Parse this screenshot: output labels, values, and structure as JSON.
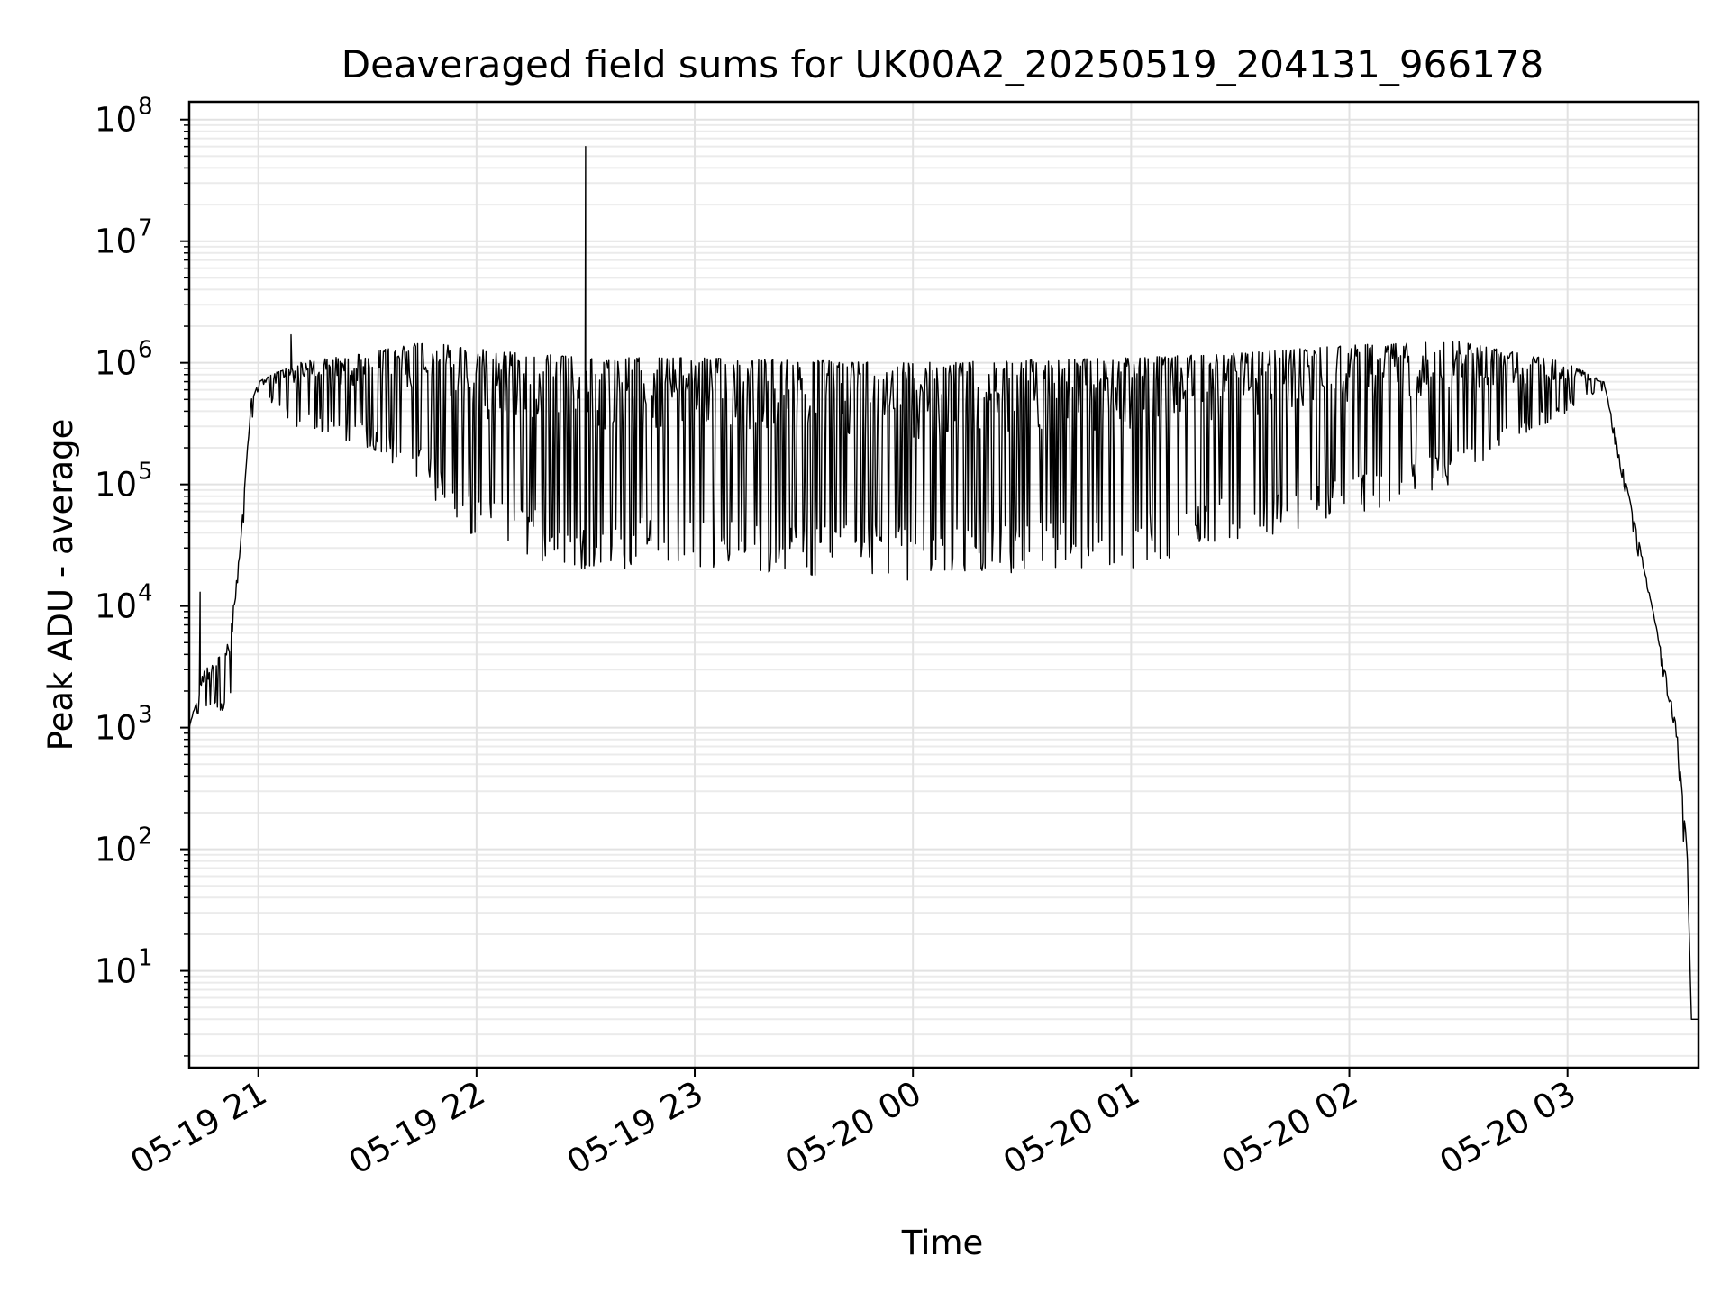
{
  "chart_data": {
    "type": "line",
    "title": "Deaveraged field sums for UK00A2_20250519_204131_966178",
    "xlabel": "Time",
    "ylabel": "Peak ADU - average",
    "yscale": "log",
    "grid": true,
    "x_range": [
      "2025-05-19 20:41",
      "2025-05-20 03:36"
    ],
    "ylim": [
      1.6,
      140000000
    ],
    "x_ticks": [
      "05-19 21",
      "05-19 22",
      "05-19 23",
      "05-20 00",
      "05-20 01",
      "05-20 02",
      "05-20 03"
    ],
    "y_ticks": [
      {
        "base": "10",
        "exp": "1",
        "value": 10
      },
      {
        "base": "10",
        "exp": "2",
        "value": 100
      },
      {
        "base": "10",
        "exp": "3",
        "value": 1000
      },
      {
        "base": "10",
        "exp": "4",
        "value": 10000
      },
      {
        "base": "10",
        "exp": "5",
        "value": 100000
      },
      {
        "base": "10",
        "exp": "6",
        "value": 1000000
      },
      {
        "base": "10",
        "exp": "7",
        "value": 10000000
      },
      {
        "base": "10",
        "exp": "8",
        "value": 100000000
      }
    ],
    "series": [
      {
        "color": "#000000",
        "envelope": [
          {
            "t": "2025-05-19 20:41",
            "upper": 1000,
            "lower": 1000
          },
          {
            "t": "2025-05-19 20:45",
            "upper": 3000,
            "lower": 1500
          },
          {
            "t": "2025-05-19 20:52",
            "upper": 5000,
            "lower": 1200
          },
          {
            "t": "2025-05-19 20:55",
            "upper": 30000,
            "lower": 20000
          },
          {
            "t": "2025-05-19 20:58",
            "upper": 500000,
            "lower": 300000
          },
          {
            "t": "2025-05-19 21:00",
            "upper": 700000,
            "lower": 600000
          },
          {
            "t": "2025-05-19 21:10",
            "upper": 1000000,
            "lower": 300000
          },
          {
            "t": "2025-05-19 21:30",
            "upper": 1200000,
            "lower": 200000
          },
          {
            "t": "2025-05-19 21:45",
            "upper": 1500000,
            "lower": 100000
          },
          {
            "t": "2025-05-19 22:00",
            "upper": 1300000,
            "lower": 30000
          },
          {
            "t": "2025-05-19 22:30",
            "upper": 1100000,
            "lower": 20000
          },
          {
            "t": "2025-05-19 23:00",
            "upper": 1100000,
            "lower": 19000
          },
          {
            "t": "2025-05-20 00:00",
            "upper": 1000000,
            "lower": 16000
          },
          {
            "t": "2025-05-20 01:00",
            "upper": 1100000,
            "lower": 20000
          },
          {
            "t": "2025-05-20 01:30",
            "upper": 1200000,
            "lower": 35000
          },
          {
            "t": "2025-05-20 02:00",
            "upper": 1400000,
            "lower": 50000
          },
          {
            "t": "2025-05-20 02:30",
            "upper": 1500000,
            "lower": 100000
          },
          {
            "t": "2025-05-20 03:00",
            "upper": 1000000,
            "lower": 400000
          },
          {
            "t": "2025-05-20 03:10",
            "upper": 700000,
            "lower": 600000
          },
          {
            "t": "2025-05-20 03:20",
            "upper": 30000,
            "lower": 20000
          },
          {
            "t": "2025-05-20 03:30",
            "upper": 1000,
            "lower": 800
          },
          {
            "t": "2025-05-20 03:33",
            "upper": 100,
            "lower": 30
          },
          {
            "t": "2025-05-20 03:34",
            "upper": 4,
            "lower": 4
          },
          {
            "t": "2025-05-20 03:36",
            "upper": 4,
            "lower": 4
          }
        ],
        "spikes": [
          {
            "t": "2025-05-19 20:44",
            "value": 13000
          },
          {
            "t": "2025-05-19 21:09",
            "value": 1700000
          },
          {
            "t": "2025-05-19 22:30",
            "value": 60000000
          }
        ]
      }
    ]
  }
}
